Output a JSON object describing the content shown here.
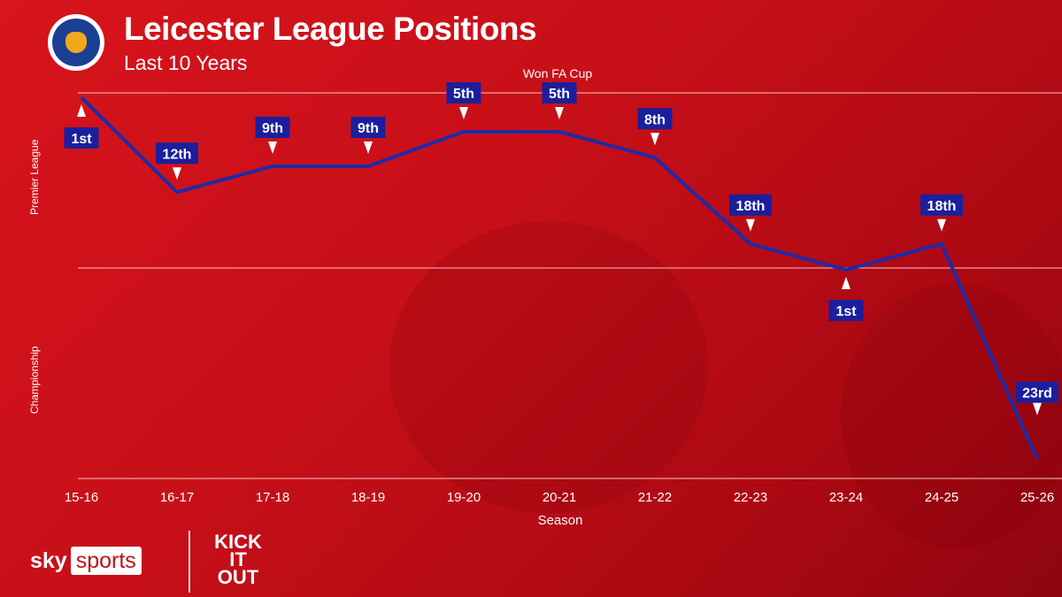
{
  "header": {
    "title": "Leicester League Positions",
    "subtitle": "Last 10 Years",
    "logo_text": "LEICESTER CITY FOOTBALL CLUB"
  },
  "footer": {
    "sky": "sky",
    "sports": "sports",
    "partner_logo": "KICK IT OUT"
  },
  "colors": {
    "background": "#c8101a",
    "line": "#1f2aa8",
    "label_bg": "#1a1f9e"
  },
  "chart_data": {
    "type": "line",
    "title": "Leicester League Positions",
    "subtitle": "Last 10 Years",
    "xlabel": "Season",
    "y_bands": [
      "Premier League",
      "Championship"
    ],
    "categories": [
      "15-16",
      "16-17",
      "17-18",
      "18-19",
      "19-20",
      "20-21",
      "21-22",
      "22-23",
      "23-24",
      "24-25",
      "25-26"
    ],
    "league": [
      "Premier League",
      "Premier League",
      "Premier League",
      "Premier League",
      "Premier League",
      "Premier League",
      "Premier League",
      "Premier League",
      "Championship",
      "Premier League",
      "Championship"
    ],
    "positions": [
      1,
      12,
      9,
      9,
      5,
      5,
      8,
      18,
      1,
      18,
      23
    ],
    "labels": [
      "1st",
      "12th",
      "9th",
      "9th",
      "5th",
      "5th",
      "8th",
      "18th",
      "1st",
      "18th",
      "23rd"
    ],
    "annotations": [
      {
        "season": "20-21",
        "text": "Won FA Cup"
      }
    ],
    "y_inverted": true,
    "grid": "horizontal league boundaries"
  }
}
